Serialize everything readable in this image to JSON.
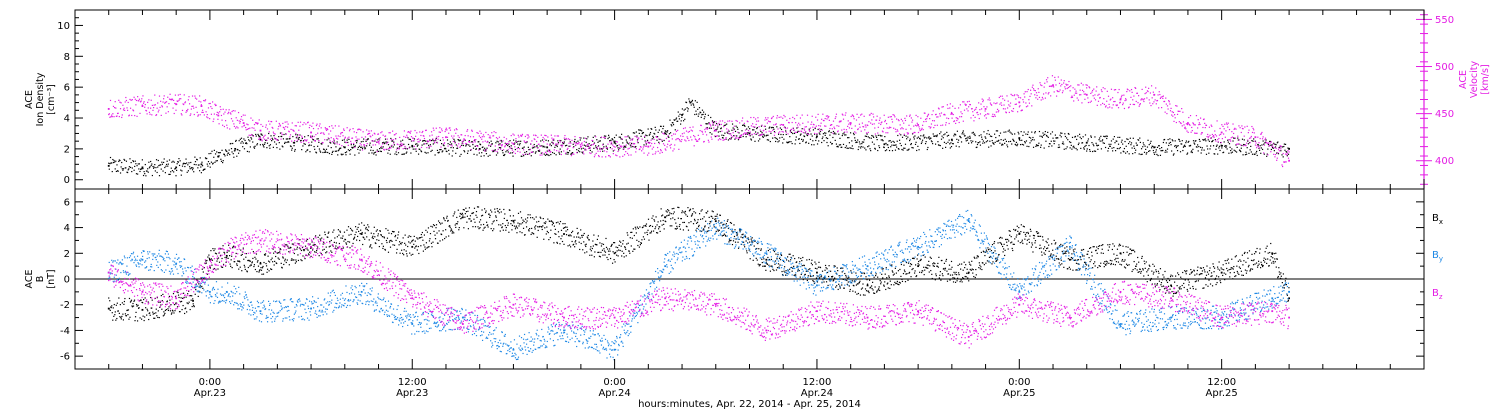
{
  "chart_data": [
    {
      "type": "scatter",
      "panel": "ace-density-velocity",
      "ylabel_lines": [
        "ACE",
        "Ion Density",
        "[cm⁻³]"
      ],
      "y2label_lines": [
        "ACE",
        "Velocity",
        "[km/s]"
      ],
      "ylim": [
        -0.6,
        11
      ],
      "y2lim": [
        370,
        560
      ],
      "yticks": [
        0,
        2,
        4,
        6,
        8,
        10
      ],
      "y2ticks": [
        400,
        450,
        500,
        550
      ],
      "grid": false,
      "series": [
        {
          "axis": "left",
          "color": "#000000",
          "x": [
            -6,
            -4,
            -2,
            -0.5,
            0.5,
            1.5,
            3,
            5,
            8,
            12,
            16,
            20,
            24,
            27,
            28,
            28.5,
            30,
            32,
            36,
            40,
            44,
            48,
            52,
            56,
            60,
            64
          ],
          "values": [
            0.9,
            0.8,
            0.8,
            1.0,
            1.5,
            2.0,
            2.6,
            2.4,
            2.1,
            2.2,
            2.0,
            2.1,
            2.4,
            3.0,
            4.2,
            5.0,
            3.2,
            3.0,
            2.8,
            2.3,
            2.6,
            2.7,
            2.4,
            2.1,
            2.2,
            2.0
          ]
        },
        {
          "axis": "right",
          "color": "#e41ce4",
          "x": [
            -6,
            -4,
            -2,
            -0.5,
            0.5,
            2,
            3,
            6,
            10,
            14,
            18,
            22,
            26,
            30,
            34,
            38,
            42,
            44,
            46,
            48,
            50,
            52,
            54,
            56,
            58,
            60,
            62,
            64
          ],
          "values": [
            455,
            458,
            460,
            458,
            448,
            440,
            432,
            430,
            420,
            425,
            418,
            415,
            415,
            432,
            438,
            440,
            438,
            450,
            455,
            462,
            480,
            470,
            465,
            470,
            440,
            430,
            425,
            400
          ]
        }
      ]
    },
    {
      "type": "scatter",
      "panel": "ace-imf-components",
      "ylabel_lines": [
        "ACE",
        "B",
        "[nT]"
      ],
      "ylim": [
        -7,
        7
      ],
      "yticks": [
        -6,
        -4,
        -2,
        0,
        2,
        4,
        6
      ],
      "zero_line": true,
      "legend_position": "right",
      "series": [
        {
          "name": "B",
          "subscript": "x",
          "color": "#000000",
          "x": [
            -6,
            -4,
            -2,
            -1,
            0,
            1,
            3,
            6,
            9,
            12,
            15,
            18,
            21,
            24,
            27,
            30,
            33,
            36,
            39,
            42,
            45,
            48,
            51,
            54,
            57,
            60,
            63,
            64
          ],
          "values": [
            -2.3,
            -2.4,
            -1.9,
            -1.7,
            1.5,
            1.8,
            1.2,
            2.5,
            3.5,
            2.5,
            4.8,
            4.5,
            3.5,
            2.0,
            4.8,
            4.5,
            1.5,
            0.5,
            -0.5,
            1.0,
            0.5,
            3.5,
            1.5,
            2.0,
            -0.5,
            0.5,
            2.0,
            -1.5
          ]
        },
        {
          "name": "B",
          "subscript": "y",
          "color": "#1e88e5",
          "x": [
            -6,
            -4,
            -2,
            0,
            1,
            3,
            6,
            9,
            12,
            15,
            18,
            21,
            24,
            27,
            30,
            33,
            36,
            39,
            42,
            45,
            48,
            51,
            54,
            57,
            60,
            63,
            64
          ],
          "values": [
            0.5,
            1.5,
            1.2,
            -1.0,
            -1.0,
            -2.5,
            -2.3,
            -1.0,
            -3.5,
            -3.0,
            -5.5,
            -4.0,
            -5.5,
            1.0,
            4.0,
            2.0,
            -0.5,
            1.0,
            2.5,
            4.5,
            -1.0,
            2.5,
            -3.5,
            -3.0,
            -3.0,
            -1.5,
            -1.0
          ]
        },
        {
          "name": "B",
          "subscript": "z",
          "color": "#e41ce4",
          "x": [
            -6,
            -4,
            -2,
            0,
            1.5,
            3,
            6,
            9,
            12,
            15,
            18,
            21,
            24,
            27,
            30,
            33,
            36,
            39,
            42,
            45,
            48,
            51,
            54,
            57,
            60,
            63,
            64
          ],
          "values": [
            0.5,
            -1.0,
            -1.5,
            1.0,
            2.5,
            3.0,
            2.5,
            1.5,
            -1.5,
            -3.5,
            -2.0,
            -3.0,
            -3.0,
            -1.5,
            -2.0,
            -4.0,
            -2.5,
            -3.0,
            -2.5,
            -4.5,
            -2.0,
            -3.0,
            -1.0,
            -1.5,
            -3.0,
            -2.5,
            -3.0
          ]
        }
      ]
    }
  ],
  "x_axis": {
    "xlim": [
      -8,
      72
    ],
    "ticks": [
      {
        "x": 0,
        "time": "0:00",
        "date": "Apr.23"
      },
      {
        "x": 12,
        "time": "12:00",
        "date": "Apr.23"
      },
      {
        "x": 24,
        "time": "0:00",
        "date": "Apr.24"
      },
      {
        "x": 36,
        "time": "12:00",
        "date": "Apr.24"
      },
      {
        "x": 48,
        "time": "0:00",
        "date": "Apr.25"
      },
      {
        "x": 60,
        "time": "12:00",
        "date": "Apr.25"
      }
    ],
    "xlabel": "hours:minutes, Apr. 22, 2014 - Apr. 25, 2014"
  },
  "colors": {
    "density": "#000000",
    "velocity": "#e41ce4",
    "bx": "#000000",
    "by": "#1e88e5",
    "bz": "#e41ce4"
  }
}
